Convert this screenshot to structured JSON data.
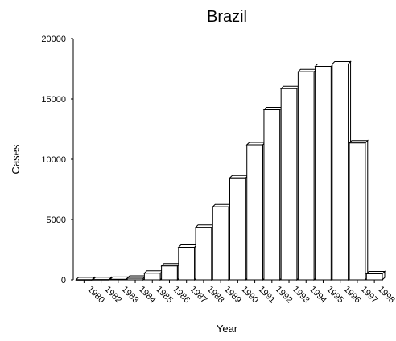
{
  "chart_data": {
    "type": "bar",
    "title": "Brazil",
    "xlabel": "Year",
    "ylabel": "Cases",
    "categories": [
      "1980",
      "1982",
      "1983",
      "1984",
      "1985",
      "1986",
      "1987",
      "1988",
      "1989",
      "1990",
      "1991",
      "1992",
      "1993",
      "1994",
      "1995",
      "1996",
      "1997",
      "1998"
    ],
    "values": [
      10,
      20,
      40,
      130,
      550,
      1150,
      2700,
      4350,
      6050,
      8450,
      11200,
      14100,
      15850,
      17250,
      17700,
      17900,
      11350,
      500
    ],
    "ylim": [
      0,
      20000
    ],
    "yticks": [
      0,
      5000,
      10000,
      15000,
      20000
    ],
    "ytick_labels": [
      "0",
      "5000",
      "10000",
      "15000",
      "20000"
    ],
    "grid": false,
    "bar_style": "3d-outlined",
    "colors": {
      "bar_fill": "#ffffff",
      "bar_stroke": "#000000"
    }
  }
}
